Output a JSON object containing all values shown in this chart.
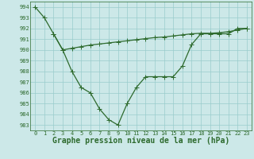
{
  "line1_x": [
    0,
    1,
    2,
    3,
    4,
    5,
    6,
    7,
    8,
    9,
    10,
    11,
    12,
    13,
    14,
    15,
    16,
    17,
    18,
    19,
    20,
    21,
    22,
    23
  ],
  "line1_y": [
    994.0,
    993.0,
    991.5,
    990.0,
    988.0,
    986.5,
    986.0,
    984.5,
    983.5,
    983.0,
    985.0,
    986.5,
    987.5,
    987.5,
    987.5,
    987.5,
    988.5,
    990.5,
    991.5,
    991.5,
    991.5,
    991.5,
    992.0,
    992.0
  ],
  "line2_x": [
    2,
    3,
    4,
    5,
    6,
    7,
    8,
    9,
    10,
    11,
    12,
    13,
    14,
    15,
    16,
    17,
    18,
    19,
    20,
    21,
    22,
    23
  ],
  "line2_y": [
    991.5,
    990.0,
    990.15,
    990.3,
    990.45,
    990.55,
    990.65,
    990.75,
    990.85,
    990.95,
    991.05,
    991.15,
    991.2,
    991.3,
    991.4,
    991.5,
    991.55,
    991.55,
    991.6,
    991.7,
    991.85,
    992.0
  ],
  "line_color": "#2d6a2d",
  "bg_color": "#cce8e8",
  "grid_color": "#99cccc",
  "xlabel": "Graphe pression niveau de la mer (hPa)",
  "ylim": [
    982.5,
    994.5
  ],
  "xlim": [
    -0.5,
    23.5
  ],
  "yticks": [
    983,
    984,
    985,
    986,
    987,
    988,
    989,
    990,
    991,
    992,
    993,
    994
  ],
  "xticks": [
    0,
    1,
    2,
    3,
    4,
    5,
    6,
    7,
    8,
    9,
    10,
    11,
    12,
    13,
    14,
    15,
    16,
    17,
    18,
    19,
    20,
    21,
    22,
    23
  ],
  "tick_fontsize": 5.0,
  "xlabel_fontsize": 7.0,
  "marker_size": 4.0,
  "linewidth": 0.9
}
